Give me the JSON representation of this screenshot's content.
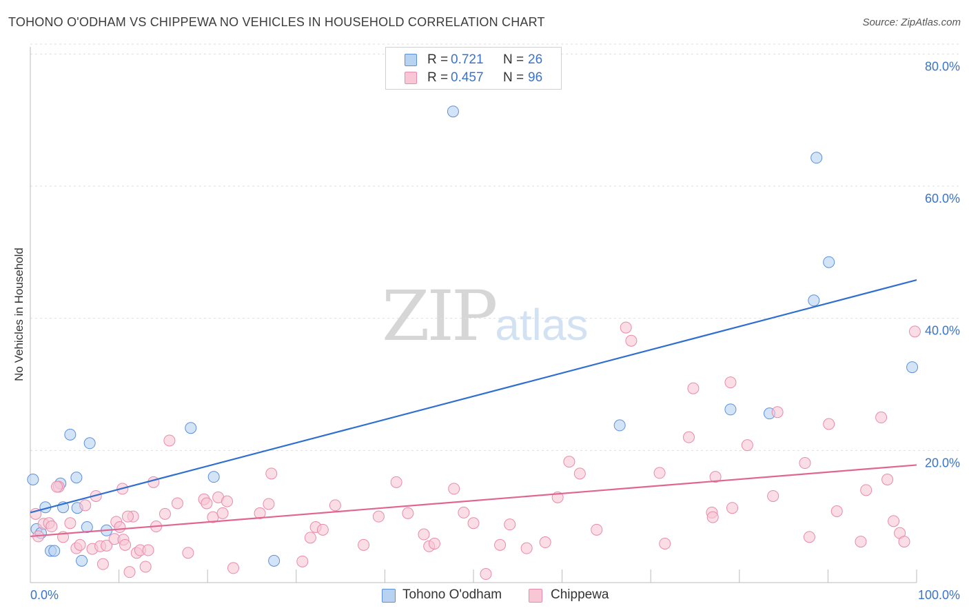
{
  "title": "TOHONO O'ODHAM VS CHIPPEWA NO VEHICLES IN HOUSEHOLD CORRELATION CHART",
  "source": "Source: ZipAtlas.com",
  "watermark": {
    "zip": "ZIP",
    "atlas": "atlas"
  },
  "colors": {
    "blue": "#5b8fdc",
    "blue_fill": "#b8d2f2",
    "blue_line": "#2f6fcf",
    "pink": "#e88aaa",
    "pink_fill": "#f9c6d6",
    "pink_line": "#e06690",
    "axis_label": "#3a73c8",
    "grid": "#dddddd"
  },
  "legend": {
    "rows": [
      {
        "r_label": "R =",
        "r_value": "0.721",
        "n_label": "N =",
        "n_value": "26"
      },
      {
        "r_label": "R =",
        "r_value": "0.457",
        "n_label": "N =",
        "n_value": "96"
      }
    ],
    "series_names": [
      "Tohono O'odham",
      "Chippewa"
    ]
  },
  "chart_data": {
    "type": "scatter",
    "title": "TOHONO O'ODHAM VS CHIPPEWA NO VEHICLES IN HOUSEHOLD CORRELATION CHART",
    "xlabel": "",
    "ylabel": "No Vehicles in Household",
    "xlim": [
      0,
      100
    ],
    "ylim": [
      0,
      80
    ],
    "x_tick_labels": [
      "0.0%",
      "100.0%"
    ],
    "y_ticks": [
      20,
      40,
      60,
      80
    ],
    "y_tick_labels": [
      "20.0%",
      "40.0%",
      "60.0%",
      "80.0%"
    ],
    "series": [
      {
        "name": "Tohono O'odham",
        "R": 0.721,
        "N": 26,
        "trend": {
          "x0": 0,
          "y0": 10.6,
          "x1": 100,
          "y1": 45.8
        },
        "points": [
          [
            0.3,
            15.6
          ],
          [
            0.7,
            8.1
          ],
          [
            1.2,
            7.5
          ],
          [
            1.7,
            11.4
          ],
          [
            2.3,
            4.8
          ],
          [
            2.7,
            4.8
          ],
          [
            3.4,
            15.0
          ],
          [
            3.7,
            11.4
          ],
          [
            4.5,
            22.4
          ],
          [
            5.2,
            15.9
          ],
          [
            5.3,
            11.3
          ],
          [
            5.8,
            3.3
          ],
          [
            6.4,
            8.4
          ],
          [
            6.7,
            21.1
          ],
          [
            8.6,
            7.9
          ],
          [
            18.1,
            23.4
          ],
          [
            20.7,
            16.0
          ],
          [
            27.5,
            3.3
          ],
          [
            47.7,
            71.3
          ],
          [
            66.5,
            23.8
          ],
          [
            79.0,
            26.2
          ],
          [
            83.4,
            25.6
          ],
          [
            88.4,
            42.7
          ],
          [
            88.7,
            64.3
          ],
          [
            90.1,
            48.5
          ],
          [
            99.5,
            32.6
          ]
        ]
      },
      {
        "name": "Chippewa",
        "R": 0.457,
        "N": 96,
        "trend": {
          "x0": 0,
          "y0": 7.0,
          "x1": 100,
          "y1": 17.8
        },
        "points": [
          [
            0.6,
            10.4
          ],
          [
            0.9,
            7.0
          ],
          [
            1.5,
            8.9
          ],
          [
            2.1,
            9.0
          ],
          [
            2.4,
            8.5
          ],
          [
            3.2,
            14.5
          ],
          [
            3.7,
            6.9
          ],
          [
            4.5,
            9.0
          ],
          [
            5.2,
            5.2
          ],
          [
            5.6,
            5.7
          ],
          [
            6.2,
            11.7
          ],
          [
            7.0,
            5.1
          ],
          [
            7.4,
            13.1
          ],
          [
            7.9,
            5.5
          ],
          [
            8.2,
            2.8
          ],
          [
            8.6,
            5.6
          ],
          [
            9.5,
            6.6
          ],
          [
            9.7,
            9.2
          ],
          [
            10.1,
            8.4
          ],
          [
            10.4,
            14.2
          ],
          [
            10.5,
            6.5
          ],
          [
            10.7,
            5.7
          ],
          [
            11.2,
            1.6
          ],
          [
            11.6,
            10.0
          ],
          [
            12.0,
            4.5
          ],
          [
            12.4,
            4.9
          ],
          [
            13.0,
            2.4
          ],
          [
            13.3,
            4.9
          ],
          [
            13.9,
            15.2
          ],
          [
            14.2,
            8.5
          ],
          [
            15.2,
            10.4
          ],
          [
            15.7,
            21.5
          ],
          [
            16.6,
            12.0
          ],
          [
            17.8,
            4.5
          ],
          [
            19.6,
            12.6
          ],
          [
            19.9,
            12.0
          ],
          [
            20.6,
            9.9
          ],
          [
            21.2,
            12.9
          ],
          [
            21.7,
            10.5
          ],
          [
            22.2,
            12.3
          ],
          [
            22.9,
            2.2
          ],
          [
            25.9,
            10.5
          ],
          [
            26.9,
            11.9
          ],
          [
            27.2,
            16.5
          ],
          [
            30.7,
            3.2
          ],
          [
            31.6,
            6.8
          ],
          [
            32.2,
            8.4
          ],
          [
            33.0,
            8.0
          ],
          [
            34.4,
            11.7
          ],
          [
            37.6,
            5.7
          ],
          [
            39.3,
            10.0
          ],
          [
            41.3,
            15.2
          ],
          [
            42.6,
            10.5
          ],
          [
            44.4,
            7.3
          ],
          [
            45.0,
            5.5
          ],
          [
            45.6,
            5.9
          ],
          [
            47.8,
            14.2
          ],
          [
            48.9,
            10.6
          ],
          [
            50.0,
            9.0
          ],
          [
            51.4,
            1.3
          ],
          [
            53.0,
            5.7
          ],
          [
            54.1,
            8.8
          ],
          [
            56.0,
            5.2
          ],
          [
            58.1,
            6.1
          ],
          [
            59.5,
            12.9
          ],
          [
            60.8,
            18.3
          ],
          [
            62.0,
            16.5
          ],
          [
            63.9,
            8.0
          ],
          [
            67.2,
            38.6
          ],
          [
            67.8,
            36.6
          ],
          [
            71.0,
            16.6
          ],
          [
            71.6,
            5.9
          ],
          [
            74.3,
            22.0
          ],
          [
            74.8,
            29.4
          ],
          [
            76.9,
            10.6
          ],
          [
            77.0,
            9.9
          ],
          [
            77.3,
            16.0
          ],
          [
            79.0,
            30.3
          ],
          [
            79.2,
            11.3
          ],
          [
            80.9,
            20.8
          ],
          [
            83.8,
            13.1
          ],
          [
            84.3,
            25.8
          ],
          [
            87.4,
            18.1
          ],
          [
            87.9,
            6.9
          ],
          [
            90.1,
            24.0
          ],
          [
            91.0,
            10.8
          ],
          [
            93.7,
            6.2
          ],
          [
            94.3,
            14.0
          ],
          [
            96.0,
            25.0
          ],
          [
            96.7,
            15.6
          ],
          [
            97.4,
            9.3
          ],
          [
            98.1,
            7.5
          ],
          [
            98.6,
            6.2
          ],
          [
            99.8,
            38.0
          ],
          [
            3.0,
            14.5
          ],
          [
            11.0,
            10.0
          ]
        ]
      }
    ]
  }
}
